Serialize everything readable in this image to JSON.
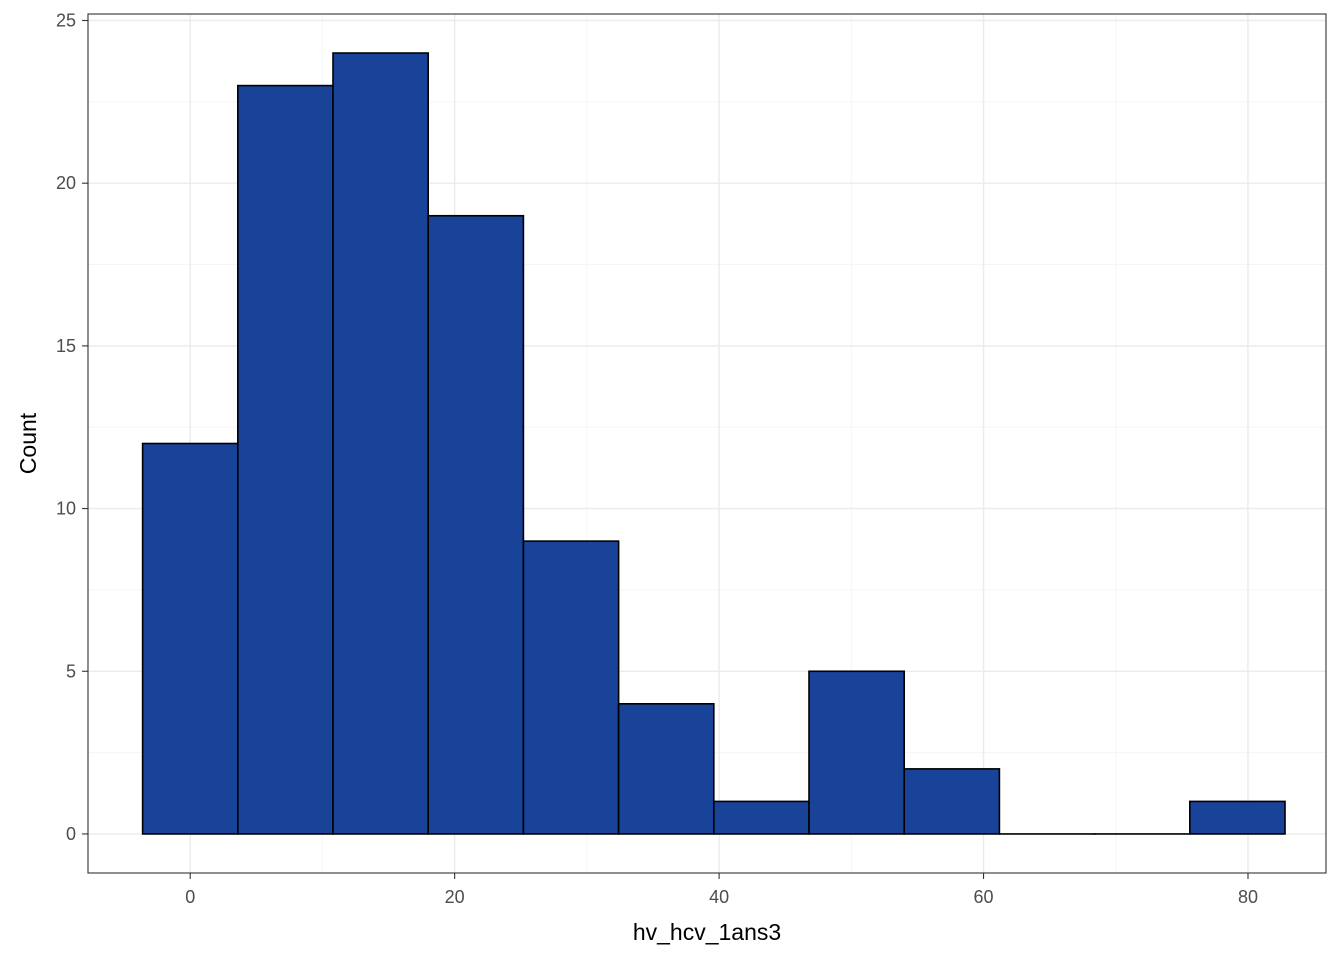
{
  "chart_data": {
    "type": "bar",
    "subtype": "histogram",
    "xlabel": "hv_hcv_1ans3",
    "ylabel": "Count",
    "xlim": [
      -7.73,
      85.9
    ],
    "ylim": [
      -1.2,
      25.2
    ],
    "x_ticks": [
      0,
      20,
      40,
      60,
      80
    ],
    "x_tick_labels": [
      "0",
      "20",
      "40",
      "60",
      "80"
    ],
    "y_ticks": [
      0,
      5,
      10,
      15,
      20,
      25
    ],
    "y_tick_labels": [
      "0",
      "5",
      "10",
      "15",
      "20",
      "25"
    ],
    "x_minor_ticks": [
      10,
      30,
      50,
      70
    ],
    "y_minor_ticks": [
      2.5,
      7.5,
      12.5,
      17.5,
      22.5
    ],
    "grid": true,
    "bins": [
      {
        "x0": -3.6,
        "x1": 3.6,
        "count": 12
      },
      {
        "x0": 3.6,
        "x1": 10.8,
        "count": 23
      },
      {
        "x0": 10.8,
        "x1": 18.0,
        "count": 24
      },
      {
        "x0": 18.0,
        "x1": 25.2,
        "count": 19
      },
      {
        "x0": 25.2,
        "x1": 32.4,
        "count": 9
      },
      {
        "x0": 32.4,
        "x1": 39.6,
        "count": 4
      },
      {
        "x0": 39.6,
        "x1": 46.8,
        "count": 1
      },
      {
        "x0": 46.8,
        "x1": 54.0,
        "count": 5
      },
      {
        "x0": 54.0,
        "x1": 61.2,
        "count": 2
      },
      {
        "x0": 61.2,
        "x1": 68.4,
        "count": 0
      },
      {
        "x0": 68.4,
        "x1": 75.6,
        "count": 0
      },
      {
        "x0": 75.6,
        "x1": 82.8,
        "count": 1
      }
    ],
    "colors": {
      "fill": "#184398",
      "outline": "#000000",
      "grid_major": "#ebebeb",
      "grid_minor": "#f5f5f5",
      "panel_border": "#333333",
      "tick_text": "#4d4d4d"
    }
  }
}
